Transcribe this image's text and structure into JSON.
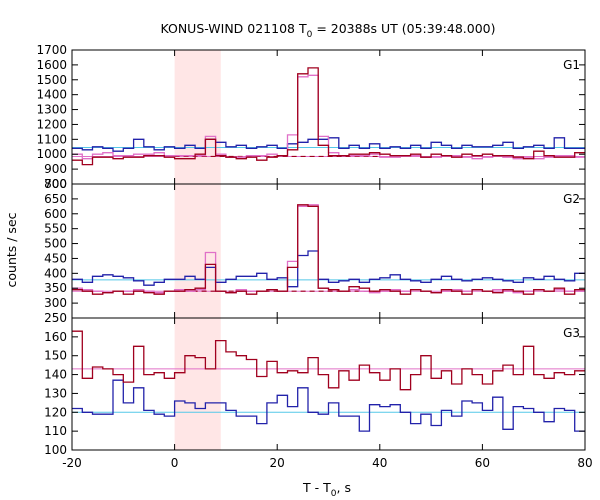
{
  "chart_data": {
    "type": "step-line",
    "title": "KONUS-WIND 021108 T",
    "title_sub": "0",
    "title_tail": " = 20388s UT (05:39:48.000)",
    "xlabel": "T - T",
    "xlabel_sub": "0",
    "xlabel_tail": ", s",
    "ylabel": "counts / sec",
    "xlim": [
      -20,
      80
    ],
    "xticks": [
      -20,
      0,
      20,
      40,
      60,
      80
    ],
    "highlight_interval": [
      0,
      9
    ],
    "colors": {
      "dark_red": "#a0001e",
      "blue": "#2222aa",
      "pink": "#e070c8",
      "cyan": "#55c8e8",
      "shade": "#ffe6e6",
      "dash": "#a0001e"
    },
    "bin_edges": [
      -20,
      -18,
      -16,
      -14,
      -12,
      -10,
      -8,
      -6,
      -4,
      -2,
      0,
      2,
      4,
      6,
      8,
      10,
      12,
      14,
      16,
      18,
      20,
      22,
      24,
      26,
      28,
      30,
      32,
      34,
      36,
      38,
      40,
      42,
      44,
      46,
      48,
      50,
      52,
      54,
      56,
      58,
      60,
      62,
      64,
      66,
      68,
      70,
      72,
      74,
      76,
      78,
      80
    ],
    "panels": [
      {
        "label": "G1",
        "ylim": [
          800,
          1700
        ],
        "yticks": [
          800,
          900,
          1000,
          1100,
          1200,
          1300,
          1400,
          1500,
          1600,
          1700
        ],
        "background_levels": [
          {
            "color": "cyan",
            "value": 1045
          },
          {
            "color": "pink",
            "value": 985
          },
          {
            "color": "dash",
            "value": 985,
            "dashed": true,
            "from": 0,
            "to": 40
          }
        ],
        "series": [
          {
            "color": "blue",
            "values": [
              1040,
              1030,
              1050,
              1040,
              1020,
              1040,
              1100,
              1050,
              1030,
              1050,
              1040,
              1060,
              1040,
              1100,
              1080,
              1050,
              1060,
              1040,
              1050,
              1060,
              1040,
              1070,
              1080,
              1100,
              1100,
              1110,
              1040,
              1060,
              1040,
              1070,
              1040,
              1050,
              1040,
              1060,
              1040,
              1080,
              1060,
              1040,
              1060,
              1050,
              1050,
              1060,
              1080,
              1040,
              1050,
              1060,
              1040,
              1110,
              1040,
              1040
            ]
          },
          {
            "color": "pink",
            "values": [
              1000,
              970,
              1000,
              1010,
              990,
              990,
              1000,
              1000,
              1010,
              990,
              990,
              990,
              990,
              1120,
              1000,
              980,
              980,
              990,
              990,
              1000,
              990,
              1130,
              1520,
              1530,
              1120,
              1010,
              990,
              990,
              990,
              1000,
              980,
              980,
              990,
              990,
              980,
              980,
              990,
              990,
              980,
              970,
              980,
              990,
              980,
              970,
              980,
              970,
              980,
              990,
              990,
              980
            ]
          },
          {
            "color": "dark_red",
            "values": [
              960,
              930,
              980,
              980,
              970,
              980,
              980,
              990,
              990,
              980,
              970,
              970,
              1000,
              1100,
              990,
              980,
              970,
              980,
              960,
              980,
              990,
              1030,
              1540,
              1580,
              1060,
              990,
              990,
              1000,
              1000,
              1010,
              1000,
              990,
              990,
              1000,
              980,
              1000,
              990,
              980,
              1000,
              990,
              1000,
              990,
              990,
              980,
              970,
              1020,
              990,
              980,
              980,
              1010
            ]
          }
        ]
      },
      {
        "label": "G2",
        "ylim": [
          250,
          700
        ],
        "yticks": [
          250,
          300,
          350,
          400,
          450,
          500,
          550,
          600,
          650,
          700
        ],
        "background_levels": [
          {
            "color": "cyan",
            "value": 378
          },
          {
            "color": "pink",
            "value": 340
          },
          {
            "color": "dash",
            "value": 340,
            "dashed": true,
            "from": 0,
            "to": 40
          }
        ],
        "series": [
          {
            "color": "blue",
            "values": [
              380,
              370,
              390,
              395,
              390,
              385,
              375,
              360,
              370,
              380,
              380,
              390,
              380,
              420,
              370,
              380,
              390,
              390,
              400,
              380,
              385,
              355,
              460,
              475,
              380,
              370,
              375,
              380,
              370,
              380,
              385,
              395,
              380,
              375,
              370,
              380,
              390,
              380,
              375,
              380,
              385,
              380,
              375,
              370,
              385,
              380,
              390,
              380,
              375,
              400
            ]
          },
          {
            "color": "pink",
            "values": [
              350,
              345,
              340,
              335,
              340,
              340,
              345,
              340,
              335,
              340,
              345,
              340,
              345,
              470,
              340,
              335,
              345,
              340,
              340,
              345,
              340,
              440,
              625,
              630,
              350,
              345,
              340,
              345,
              340,
              335,
              340,
              345,
              340,
              345,
              340,
              335,
              340,
              345,
              340,
              345,
              340,
              345,
              340,
              335,
              340,
              345,
              340,
              345,
              340,
              340
            ]
          },
          {
            "color": "dark_red",
            "values": [
              345,
              340,
              330,
              335,
              340,
              330,
              340,
              335,
              330,
              340,
              340,
              345,
              350,
              430,
              340,
              335,
              340,
              330,
              340,
              345,
              340,
              420,
              630,
              625,
              350,
              345,
              340,
              355,
              350,
              340,
              345,
              340,
              330,
              345,
              340,
              335,
              345,
              340,
              330,
              345,
              340,
              335,
              345,
              340,
              330,
              345,
              340,
              350,
              330,
              345
            ]
          }
        ]
      },
      {
        "label": "G3",
        "ylim": [
          100,
          170
        ],
        "yticks": [
          100,
          110,
          120,
          130,
          140,
          150,
          160
        ],
        "background_levels": [
          {
            "color": "cyan",
            "value": 120
          },
          {
            "color": "pink",
            "value": 143
          }
        ],
        "series": [
          {
            "color": "blue",
            "values": [
              122,
              120,
              119,
              119,
              137,
              125,
              133,
              121,
              119,
              118,
              126,
              125,
              122,
              125,
              125,
              121,
              118,
              118,
              114,
              125,
              129,
              123,
              133,
              120,
              119,
              125,
              118,
              118,
              110,
              124,
              123,
              124,
              120,
              114,
              119,
              113,
              121,
              118,
              126,
              125,
              121,
              128,
              111,
              123,
              122,
              120,
              115,
              122,
              121,
              110
            ]
          },
          {
            "color": "dark_red",
            "values": [
              163,
              138,
              144,
              143,
              140,
              136,
              155,
              140,
              141,
              138,
              141,
              150,
              149,
              143,
              158,
              152,
              150,
              148,
              139,
              147,
              141,
              142,
              141,
              149,
              140,
              133,
              142,
              137,
              145,
              141,
              137,
              143,
              132,
              140,
              150,
              138,
              142,
              135,
              143,
              140,
              135,
              142,
              145,
              140,
              155,
              140,
              138,
              141,
              140,
              142
            ]
          }
        ]
      }
    ]
  }
}
